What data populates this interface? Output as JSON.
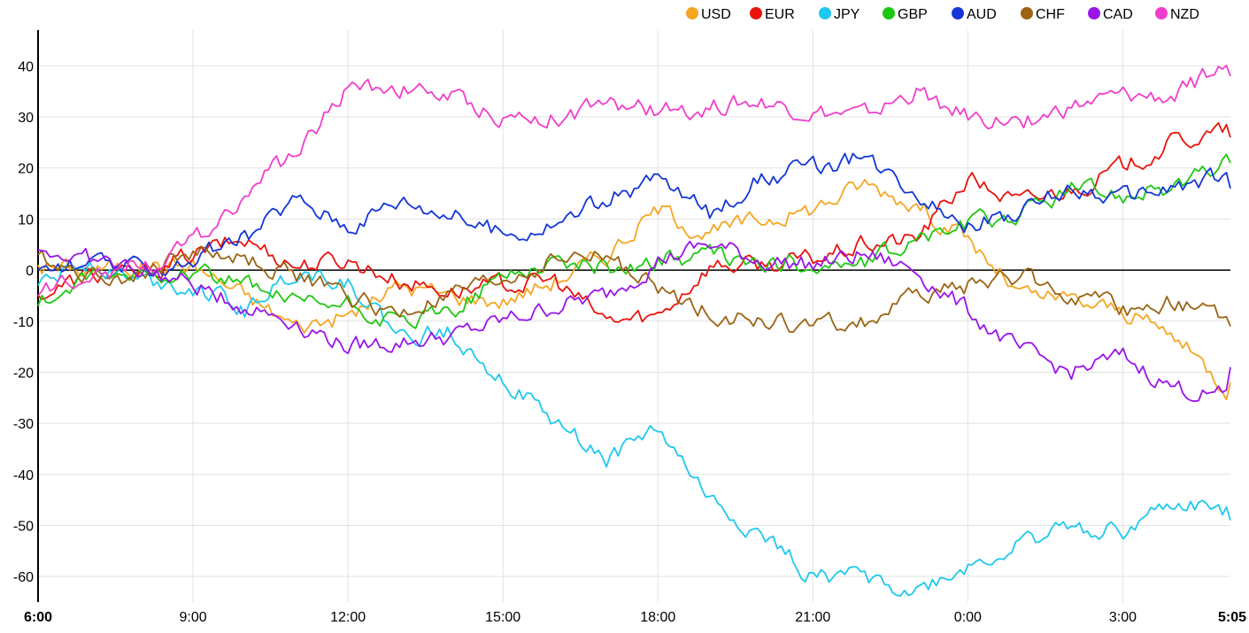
{
  "chart_data": {
    "type": "line",
    "x_ticks": [
      "6:00",
      "9:00",
      "12:00",
      "15:00",
      "18:00",
      "21:00",
      "0:00",
      "3:00",
      "5:05"
    ],
    "x_ticks_bold": [
      "6:00",
      "5:05"
    ],
    "x_tick_hours": [
      0,
      3,
      6,
      9,
      12,
      15,
      18,
      21,
      23.0833
    ],
    "y_ticks": [
      40,
      30,
      20,
      10,
      0,
      -10,
      -20,
      -30,
      -40,
      -50,
      -60
    ],
    "ylim": [
      -65,
      47
    ],
    "xlim": [
      0,
      23.0833
    ],
    "grid": true,
    "legend_position": "top-right",
    "x_hours": [
      0,
      1,
      2,
      3,
      4,
      5,
      6,
      7,
      8,
      9,
      10,
      11,
      12,
      13,
      14,
      15,
      16,
      17,
      18,
      19,
      20,
      21,
      22,
      23,
      23.08
    ],
    "series": [
      {
        "name": "USD",
        "color": "#f5a623",
        "values": [
          1,
          0,
          1,
          1,
          -5,
          -11,
          -9,
          -3,
          -5,
          -6,
          -2,
          3,
          12,
          7,
          10,
          12,
          17,
          13,
          6,
          -5,
          -6,
          -8,
          -13,
          -23,
          -22
        ]
      },
      {
        "name": "EUR",
        "color": "#e8140d",
        "values": [
          -5,
          -1,
          -1,
          3,
          6,
          1,
          2,
          -2,
          -4,
          -3,
          -2,
          -10,
          -9,
          1,
          1,
          2,
          5,
          6,
          18,
          13,
          16,
          20,
          25,
          27,
          26
        ]
      },
      {
        "name": "JPY",
        "color": "#1ec8ee",
        "values": [
          -3,
          2,
          -2,
          -3,
          -8,
          0,
          -2,
          -13,
          -12,
          -21,
          -30,
          -37,
          -31,
          -45,
          -52,
          -60,
          -60,
          -63,
          -58,
          -54,
          -50,
          -51,
          -46,
          -47,
          -49
        ]
      },
      {
        "name": "GBP",
        "color": "#1ec812",
        "values": [
          -7,
          -2,
          -1,
          0,
          -3,
          -7,
          -7,
          -11,
          -8,
          -1,
          2,
          0,
          2,
          3,
          1,
          1,
          1,
          6,
          9,
          11,
          16,
          15,
          16,
          21,
          21
        ]
      },
      {
        "name": "AUD",
        "color": "#1436d6",
        "values": [
          0,
          1,
          0,
          2,
          6,
          14,
          9,
          14,
          11,
          7,
          9,
          14,
          18,
          11,
          18,
          20,
          22,
          16,
          9,
          11,
          16,
          14,
          16,
          18,
          16
        ]
      },
      {
        "name": "CHF",
        "color": "#9a6414",
        "values": [
          3,
          -1,
          -1,
          4,
          2,
          -1,
          -5,
          -9,
          -5,
          -2,
          2,
          3,
          -4,
          -8,
          -10,
          -11,
          -10,
          -5,
          -3,
          -1,
          -5,
          -8,
          -6,
          -10,
          -11
        ]
      },
      {
        "name": "CAD",
        "color": "#9a14e8",
        "values": [
          4,
          2,
          0,
          -3,
          -7,
          -10,
          -15,
          -14,
          -13,
          -10,
          -7,
          -5,
          2,
          5,
          2,
          1,
          3,
          0,
          -8,
          -16,
          -20,
          -17,
          -23,
          -25,
          -19
        ]
      },
      {
        "name": "NZD",
        "color": "#f03ecc",
        "values": [
          -5,
          0,
          1,
          5,
          15,
          23,
          36,
          36,
          34,
          30,
          30,
          32,
          31,
          32,
          33,
          31,
          30,
          35,
          30,
          29,
          32,
          34,
          34,
          40,
          38
        ]
      }
    ]
  }
}
